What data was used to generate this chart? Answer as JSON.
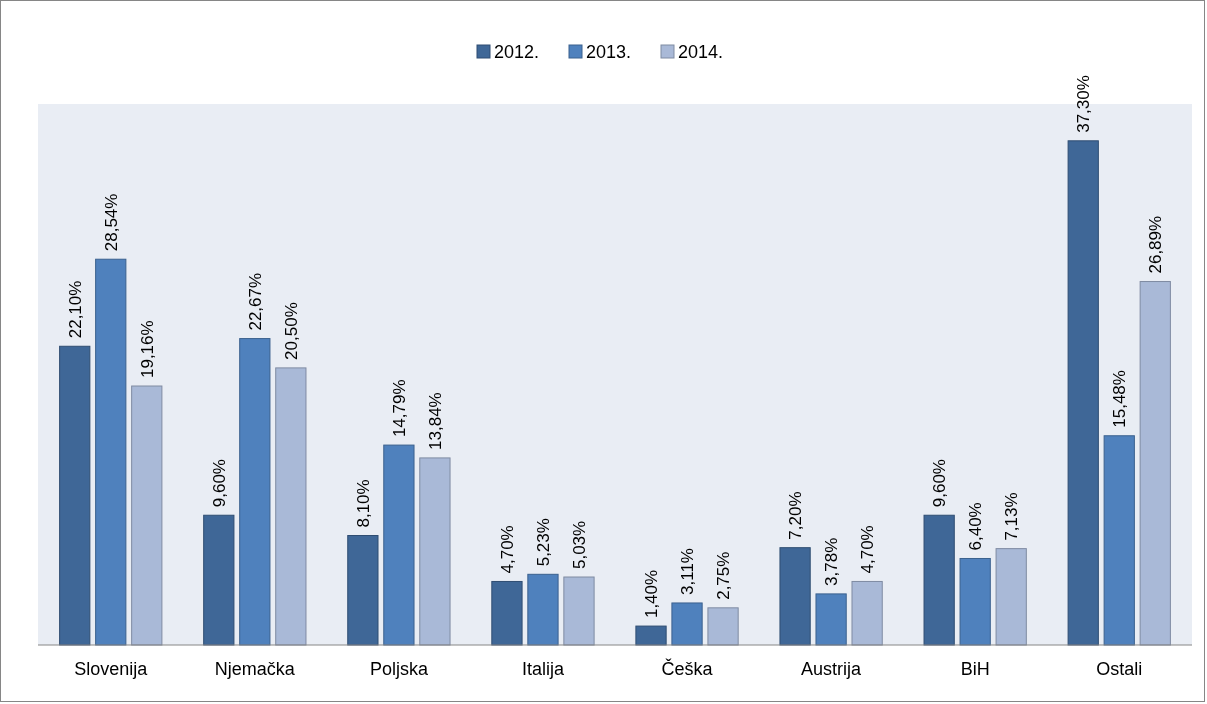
{
  "chart_data": {
    "type": "bar",
    "categories": [
      "Slovenija",
      "Njemačka",
      "Poljska",
      "Italija",
      "Češka",
      "Austrija",
      "BiH",
      "Ostali"
    ],
    "series": [
      {
        "name": "2012.",
        "color": "#3f6797",
        "values": [
          22.1,
          9.6,
          8.1,
          4.7,
          1.4,
          7.2,
          9.6,
          37.3
        ],
        "value_labels": [
          "22,10%",
          "9,60%",
          "8,10%",
          "4,70%",
          "1,40%",
          "7,20%",
          "9,60%",
          "37,30%"
        ]
      },
      {
        "name": "2013.",
        "color": "#4f81bd",
        "values": [
          28.54,
          22.67,
          14.79,
          5.23,
          3.11,
          3.78,
          6.4,
          15.48
        ],
        "value_labels": [
          "28,54%",
          "22,67%",
          "14,79%",
          "5,23%",
          "3,11%",
          "3,78%",
          "6,40%",
          "15,48%"
        ]
      },
      {
        "name": "2014.",
        "color": "#a9b9d7",
        "values": [
          19.16,
          20.5,
          13.84,
          5.03,
          2.75,
          4.7,
          7.13,
          26.89
        ],
        "value_labels": [
          "19,16%",
          "20,50%",
          "13,84%",
          "5,03%",
          "2,75%",
          "4,70%",
          "7,13%",
          "26,89%"
        ]
      }
    ],
    "legend": "top"
  }
}
